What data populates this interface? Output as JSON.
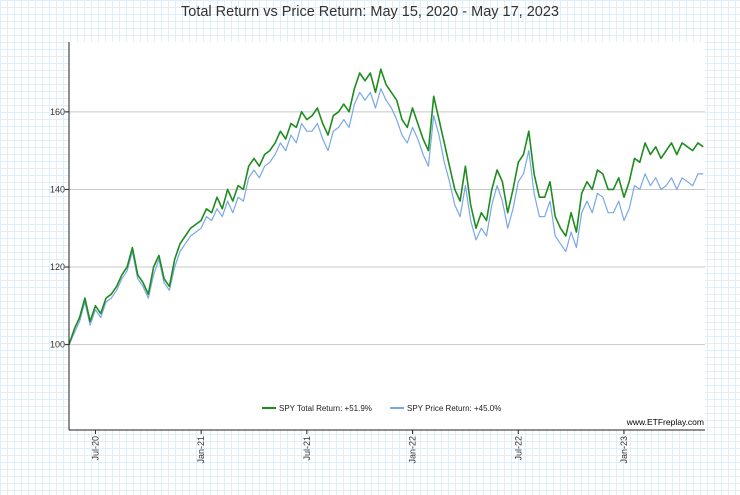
{
  "chart_data": {
    "type": "line",
    "title": "Total Return vs Price Return: May 15, 2020 - May 17, 2023",
    "xlabel": "",
    "ylabel": "",
    "ylim": [
      78,
      178
    ],
    "xlim": [
      0,
      36.1
    ],
    "yticks": [
      100,
      120,
      140,
      160
    ],
    "xticks": [
      {
        "label": "Jul-20",
        "t": 1.5
      },
      {
        "label": "Jan-21",
        "t": 7.5
      },
      {
        "label": "Jul-21",
        "t": 13.5
      },
      {
        "label": "Jan-22",
        "t": 19.5
      },
      {
        "label": "Jul-22",
        "t": 25.5
      },
      {
        "label": "Jan-23",
        "t": 31.5
      }
    ],
    "grid": true,
    "legend_position": "bottom-center",
    "source": "www.ETFreplay.com",
    "series": [
      {
        "name": "SPY Total Return: +51.9%",
        "color": "#1e8c1e",
        "x": [
          0,
          0.3,
          0.6,
          0.9,
          1.2,
          1.5,
          1.8,
          2.1,
          2.4,
          2.7,
          3.0,
          3.3,
          3.6,
          3.9,
          4.2,
          4.5,
          4.8,
          5.1,
          5.4,
          5.7,
          6.0,
          6.3,
          6.6,
          6.9,
          7.2,
          7.5,
          7.8,
          8.1,
          8.4,
          8.7,
          9.0,
          9.3,
          9.6,
          9.9,
          10.2,
          10.5,
          10.8,
          11.1,
          11.4,
          11.7,
          12.0,
          12.3,
          12.6,
          12.9,
          13.2,
          13.5,
          13.8,
          14.1,
          14.4,
          14.7,
          15.0,
          15.3,
          15.6,
          15.9,
          16.2,
          16.5,
          16.8,
          17.1,
          17.4,
          17.7,
          18.0,
          18.3,
          18.6,
          18.9,
          19.2,
          19.5,
          19.8,
          20.1,
          20.4,
          20.7,
          21.0,
          21.3,
          21.6,
          21.9,
          22.2,
          22.5,
          22.8,
          23.1,
          23.4,
          23.7,
          24.0,
          24.3,
          24.6,
          24.9,
          25.2,
          25.5,
          25.8,
          26.1,
          26.4,
          26.7,
          27.0,
          27.3,
          27.6,
          27.9,
          28.2,
          28.5,
          28.8,
          29.1,
          29.4,
          29.7,
          30.0,
          30.3,
          30.6,
          30.9,
          31.2,
          31.5,
          31.8,
          32.1,
          32.4,
          32.7,
          33.0,
          33.3,
          33.6,
          33.9,
          34.2,
          34.5,
          34.8,
          35.1,
          35.4,
          35.7,
          36.0
        ],
        "values": [
          100,
          104,
          107,
          112,
          106,
          110,
          108,
          112,
          113,
          115,
          118,
          120,
          125,
          118,
          116,
          113,
          120,
          123,
          117,
          115,
          122,
          126,
          128,
          130,
          131,
          132,
          135,
          134,
          138,
          135,
          140,
          137,
          141,
          140,
          146,
          148,
          146,
          149,
          150,
          152,
          155,
          153,
          157,
          156,
          160,
          158,
          159,
          161,
          157,
          154,
          159,
          160,
          162,
          160,
          166,
          170,
          168,
          170,
          165,
          171,
          167,
          165,
          163,
          158,
          156,
          161,
          157,
          153,
          150,
          164,
          158,
          152,
          146,
          140,
          137,
          146,
          136,
          130,
          134,
          132,
          140,
          145,
          142,
          134,
          140,
          147,
          149,
          155,
          144,
          138,
          138,
          142,
          133,
          130,
          128,
          134,
          129,
          139,
          142,
          140,
          145,
          144,
          140,
          140,
          143,
          138,
          142,
          148,
          147,
          152,
          149,
          151,
          148,
          150,
          152,
          149,
          152,
          151,
          150,
          152,
          151
        ]
      },
      {
        "name": "SPY Price Return: +45.0%",
        "color": "#7aa7e8",
        "x": [
          0,
          0.3,
          0.6,
          0.9,
          1.2,
          1.5,
          1.8,
          2.1,
          2.4,
          2.7,
          3.0,
          3.3,
          3.6,
          3.9,
          4.2,
          4.5,
          4.8,
          5.1,
          5.4,
          5.7,
          6.0,
          6.3,
          6.6,
          6.9,
          7.2,
          7.5,
          7.8,
          8.1,
          8.4,
          8.7,
          9.0,
          9.3,
          9.6,
          9.9,
          10.2,
          10.5,
          10.8,
          11.1,
          11.4,
          11.7,
          12.0,
          12.3,
          12.6,
          12.9,
          13.2,
          13.5,
          13.8,
          14.1,
          14.4,
          14.7,
          15.0,
          15.3,
          15.6,
          15.9,
          16.2,
          16.5,
          16.8,
          17.1,
          17.4,
          17.7,
          18.0,
          18.3,
          18.6,
          18.9,
          19.2,
          19.5,
          19.8,
          20.1,
          20.4,
          20.7,
          21.0,
          21.3,
          21.6,
          21.9,
          22.2,
          22.5,
          22.8,
          23.1,
          23.4,
          23.7,
          24.0,
          24.3,
          24.6,
          24.9,
          25.2,
          25.5,
          25.8,
          26.1,
          26.4,
          26.7,
          27.0,
          27.3,
          27.6,
          27.9,
          28.2,
          28.5,
          28.8,
          29.1,
          29.4,
          29.7,
          30.0,
          30.3,
          30.6,
          30.9,
          31.2,
          31.5,
          31.8,
          32.1,
          32.4,
          32.7,
          33.0,
          33.3,
          33.6,
          33.9,
          34.2,
          34.5,
          34.8,
          35.1,
          35.4,
          35.7,
          36.0
        ],
        "values": [
          100,
          103,
          106,
          111,
          105,
          109,
          107,
          111,
          112,
          114,
          117,
          119,
          124,
          117,
          115,
          112,
          118,
          122,
          116,
          114,
          120,
          124,
          126,
          128,
          129,
          130,
          133,
          132,
          135,
          133,
          137,
          134,
          138,
          137,
          143,
          145,
          143,
          146,
          147,
          149,
          152,
          150,
          154,
          152,
          157,
          155,
          155,
          157,
          153,
          150,
          155,
          156,
          158,
          156,
          162,
          165,
          163,
          165,
          161,
          166,
          163,
          161,
          158,
          154,
          152,
          156,
          153,
          149,
          146,
          159,
          154,
          147,
          142,
          136,
          133,
          141,
          132,
          127,
          130,
          128,
          136,
          141,
          137,
          130,
          135,
          142,
          144,
          150,
          139,
          133,
          133,
          137,
          128,
          126,
          124,
          129,
          125,
          134,
          137,
          134,
          139,
          138,
          134,
          134,
          137,
          132,
          135,
          141,
          140,
          144,
          141,
          143,
          140,
          141,
          143,
          140,
          143,
          142,
          141,
          144,
          144
        ]
      }
    ]
  }
}
